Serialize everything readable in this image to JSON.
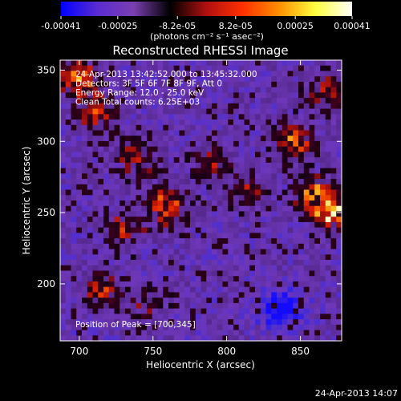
{
  "chart_data": {
    "type": "heatmap",
    "title": "Reconstructed RHESSI Image",
    "xlabel": "Heliocentric X (arcsec)",
    "ylabel": "Heliocentric Y (arcsec)",
    "xlim": [
      687,
      878
    ],
    "ylim": [
      160,
      357
    ],
    "xticks": [
      700,
      750,
      800,
      850
    ],
    "yticks": [
      200,
      250,
      300,
      350
    ],
    "colorbar": {
      "vmin": -0.00041,
      "vmax": 0.00041,
      "ticks": [
        "-0.00041",
        "-0.00025",
        "-8.2e-05",
        "8.2e-05",
        "0.00025",
        "0.00041"
      ],
      "unit_label": "(photons cm⁻² s⁻¹ asec⁻²)",
      "colors": [
        "#0000ff",
        "#5a2cd0",
        "#7a3fb0",
        "#000000",
        "#b01010",
        "#ff3000",
        "#ff9000",
        "#ffff40",
        "#ffffff"
      ]
    },
    "annotations": [
      "24-Apr-2013 13:42:52.000 to 13:45:32.000",
      "Detectors: 3F 5F 6F 7F 8F 9F, Att 0",
      "Energy Range: 12.0 - 25.0 keV",
      "Clean    Total counts: 6.25E+03"
    ],
    "peak_label": "Position of Peak = [700,345]",
    "peak": {
      "x": 700,
      "y": 345
    },
    "sources": [
      {
        "x": 700,
        "y": 345,
        "level": 0.85
      },
      {
        "x": 712,
        "y": 320,
        "level": 0.6
      },
      {
        "x": 740,
        "y": 288,
        "level": 0.55
      },
      {
        "x": 760,
        "y": 255,
        "level": 0.85
      },
      {
        "x": 730,
        "y": 238,
        "level": 0.55
      },
      {
        "x": 790,
        "y": 285,
        "level": 0.45
      },
      {
        "x": 815,
        "y": 265,
        "level": 0.45
      },
      {
        "x": 845,
        "y": 300,
        "level": 0.8
      },
      {
        "x": 860,
        "y": 262,
        "level": 0.8
      },
      {
        "x": 872,
        "y": 250,
        "level": 0.85
      },
      {
        "x": 868,
        "y": 335,
        "level": 0.55
      },
      {
        "x": 715,
        "y": 195,
        "level": 0.55
      },
      {
        "x": 745,
        "y": 185,
        "level": 0.4
      }
    ],
    "minimum": {
      "x": 837,
      "y": 182,
      "level": -0.9
    }
  },
  "footer": {
    "date": "24-Apr-2013 14:07"
  }
}
